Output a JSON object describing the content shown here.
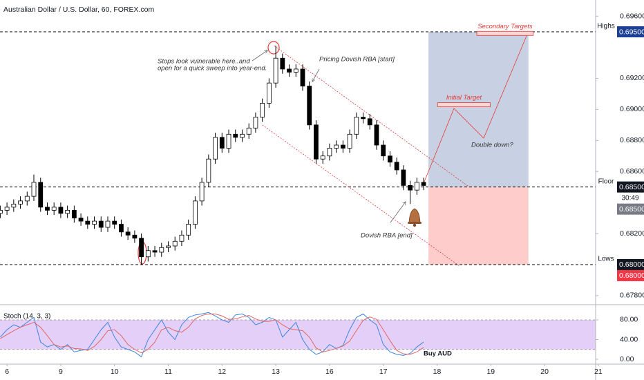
{
  "chart_data": [
    {
      "type": "candlestick",
      "title": "Australian Dollar / U.S. Dollar, 60, FOREX.com",
      "x": [
        -0.125,
        0,
        0.125,
        0.25,
        0.375,
        0.5,
        0.625,
        0.75,
        0.875,
        1,
        1.125,
        1.25,
        1.375,
        1.5,
        1.625,
        1.75,
        1.875,
        2,
        2.125,
        2.25,
        2.375,
        2.5,
        2.625,
        2.75,
        2.875,
        3,
        3.125,
        3.25,
        3.375,
        3.5,
        3.625,
        3.75,
        3.875,
        4,
        4.125,
        4.25,
        4.375,
        4.5,
        4.625,
        4.75,
        4.875,
        5,
        5.125,
        5.25,
        5.375,
        5.5,
        5.625,
        5.75,
        5.875,
        6,
        6.125,
        6.25,
        6.375,
        6.5,
        6.625,
        6.75,
        6.875,
        7,
        7.125,
        7.25,
        7.375,
        7.5,
        7.625,
        7.75
      ],
      "open": [
        0.6833,
        0.6835,
        0.6837,
        0.6839,
        0.6841,
        0.6844,
        0.6853,
        0.6837,
        0.6835,
        0.6837,
        0.6833,
        0.6835,
        0.683,
        0.6828,
        0.6826,
        0.6828,
        0.6824,
        0.6828,
        0.6826,
        0.6821,
        0.6819,
        0.6817,
        0.6805,
        0.6809,
        0.6808,
        0.6811,
        0.6812,
        0.6815,
        0.6819,
        0.6826,
        0.6841,
        0.6853,
        0.6868,
        0.6882,
        0.6875,
        0.6884,
        0.6882,
        0.6884,
        0.6888,
        0.6895,
        0.6904,
        0.6917,
        0.6933,
        0.6926,
        0.6924,
        0.6926,
        0.6915,
        0.689,
        0.6868,
        0.687,
        0.6875,
        0.6877,
        0.6875,
        0.6884,
        0.6895,
        0.6894,
        0.689,
        0.6877,
        0.687,
        0.6866,
        0.6861,
        0.6851,
        0.6848,
        0.6853
      ],
      "high": [
        0.6838,
        0.684,
        0.6842,
        0.6844,
        0.6847,
        0.6858,
        0.6856,
        0.684,
        0.684,
        0.684,
        0.6838,
        0.6838,
        0.6833,
        0.6831,
        0.6831,
        0.6831,
        0.6831,
        0.6831,
        0.6829,
        0.6824,
        0.6822,
        0.682,
        0.6812,
        0.6812,
        0.6814,
        0.6815,
        0.6818,
        0.6822,
        0.6829,
        0.6844,
        0.6856,
        0.6871,
        0.6885,
        0.6885,
        0.6887,
        0.6887,
        0.6887,
        0.6891,
        0.6898,
        0.6907,
        0.692,
        0.6941,
        0.6936,
        0.6929,
        0.6929,
        0.6929,
        0.6918,
        0.6893,
        0.6873,
        0.6878,
        0.688,
        0.688,
        0.6887,
        0.6898,
        0.6898,
        0.6897,
        0.6893,
        0.688,
        0.6873,
        0.6869,
        0.6864,
        0.6854,
        0.6856,
        0.6856
      ],
      "low": [
        0.683,
        0.6832,
        0.6834,
        0.6836,
        0.6838,
        0.6841,
        0.6834,
        0.6832,
        0.6832,
        0.683,
        0.683,
        0.6827,
        0.6825,
        0.6823,
        0.6823,
        0.6821,
        0.6821,
        0.6823,
        0.6818,
        0.6816,
        0.6814,
        0.68,
        0.6802,
        0.6805,
        0.6805,
        0.6808,
        0.6809,
        0.6812,
        0.6816,
        0.6823,
        0.6838,
        0.685,
        0.6865,
        0.6872,
        0.6872,
        0.6879,
        0.6879,
        0.6881,
        0.6885,
        0.6892,
        0.6901,
        0.6914,
        0.6923,
        0.6921,
        0.6921,
        0.6912,
        0.6887,
        0.6865,
        0.6865,
        0.6867,
        0.6872,
        0.6872,
        0.6872,
        0.6881,
        0.6891,
        0.6887,
        0.6874,
        0.6867,
        0.6863,
        0.6858,
        0.6848,
        0.6839,
        0.6845,
        0.6848
      ],
      "close": [
        0.6835,
        0.6837,
        0.6839,
        0.6841,
        0.6844,
        0.6853,
        0.6837,
        0.6835,
        0.6837,
        0.6833,
        0.6835,
        0.683,
        0.6828,
        0.6826,
        0.6828,
        0.6824,
        0.6828,
        0.6826,
        0.6821,
        0.6819,
        0.6817,
        0.6805,
        0.6809,
        0.6808,
        0.6811,
        0.6812,
        0.6815,
        0.6819,
        0.6826,
        0.6841,
        0.6853,
        0.6868,
        0.6882,
        0.6875,
        0.6884,
        0.6882,
        0.6884,
        0.6888,
        0.6895,
        0.6904,
        0.6917,
        0.6933,
        0.6926,
        0.6924,
        0.6926,
        0.6915,
        0.689,
        0.6868,
        0.687,
        0.6875,
        0.6877,
        0.6875,
        0.6884,
        0.6895,
        0.6894,
        0.689,
        0.6877,
        0.687,
        0.6866,
        0.6861,
        0.6851,
        0.6848,
        0.6853,
        0.6851
      ],
      "colors": {
        "up": "#ffffff",
        "down": "#000000",
        "wick": "#000000"
      },
      "xlim": [
        -0.13,
        10.95
      ],
      "xticks": [
        {
          "value": 0,
          "label": "6"
        },
        {
          "value": 1,
          "label": "9"
        },
        {
          "value": 2,
          "label": "10"
        },
        {
          "value": 3,
          "label": "11"
        },
        {
          "value": 4,
          "label": "12"
        },
        {
          "value": 5,
          "label": "13"
        },
        {
          "value": 6,
          "label": "16"
        },
        {
          "value": 7,
          "label": "17"
        },
        {
          "value": 8,
          "label": "18"
        },
        {
          "value": 9,
          "label": "19"
        },
        {
          "value": 10,
          "label": "20"
        },
        {
          "value": 11,
          "label": "21"
        }
      ],
      "ylim": [
        0.67746,
        0.69705
      ],
      "yticks": [
        {
          "value": 0.696,
          "label": "0.69600"
        },
        {
          "value": 0.692,
          "label": "0.69200"
        },
        {
          "value": 0.69,
          "label": "0.69000"
        },
        {
          "value": 0.688,
          "label": "0.68800"
        },
        {
          "value": 0.686,
          "label": "0.68600"
        },
        {
          "value": 0.682,
          "label": "0.68200"
        },
        {
          "value": 0.678,
          "label": "0.67800"
        }
      ],
      "grid": false,
      "levels": [
        {
          "name": "Highs",
          "value": 0.695
        },
        {
          "name": "Floor",
          "value": 0.685
        },
        {
          "name": "Lows",
          "value": 0.68
        }
      ],
      "price_tags": [
        {
          "label": "0.69500",
          "value": 0.695,
          "color": "#1c3f94"
        },
        {
          "label": "0.68500",
          "value": 0.685,
          "color": "#131722"
        },
        {
          "label": "0.68500",
          "value": 0.685,
          "color": "#787b86"
        },
        {
          "label": "0.68000",
          "value": 0.68,
          "color": "#131722"
        },
        {
          "label": "0.68000",
          "value": 0.68,
          "color": "#f23645"
        }
      ],
      "countdown": "30:49",
      "position": {
        "x": [
          7.84,
          9.7
        ],
        "target": 0.695,
        "entry": 0.685,
        "stop": 0.68,
        "profit_color": "#c8d1e3",
        "loss_color": "#ffcccc"
      },
      "trendlines": [
        {
          "x": [
            4.97,
            8.6
          ],
          "y": [
            0.6941,
            0.685
          ],
          "color": "#e53935"
        },
        {
          "x": [
            4.75,
            8.42
          ],
          "y": [
            0.689,
            0.6799
          ],
          "color": "#e53935"
        }
      ],
      "targets": [
        {
          "name": "Initial Target",
          "value": 0.6903,
          "x": [
            8.01,
            8.99
          ]
        },
        {
          "name": "Secondary Targets",
          "value": 0.6949,
          "x": [
            8.74,
            9.79
          ]
        }
      ],
      "annotations": {
        "stops": [
          "Stops look vulnerable here..and",
          "open for a quick sweep into year-end."
        ],
        "pricing_start": "Pricing Dovish RBA [start]",
        "dovish_end": "Dovish RBA [end]",
        "double_down": "Double down?"
      }
    },
    {
      "type": "line",
      "title": "Stoch (14, 3, 3)",
      "note": "Buy AUD",
      "x": [
        -0.125,
        0,
        0.125,
        0.25,
        0.375,
        0.5,
        0.625,
        0.75,
        0.875,
        1,
        1.125,
        1.25,
        1.375,
        1.5,
        1.625,
        1.75,
        1.875,
        2,
        2.125,
        2.25,
        2.375,
        2.5,
        2.625,
        2.75,
        2.875,
        3,
        3.125,
        3.25,
        3.375,
        3.5,
        3.625,
        3.75,
        3.875,
        4,
        4.125,
        4.25,
        4.375,
        4.5,
        4.625,
        4.75,
        4.875,
        5,
        5.125,
        5.25,
        5.375,
        5.5,
        5.625,
        5.75,
        5.875,
        6,
        6.125,
        6.25,
        6.375,
        6.5,
        6.625,
        6.75,
        6.875,
        7,
        7.125,
        7.25,
        7.375,
        7.5,
        7.625,
        7.75
      ],
      "series": [
        {
          "color": "#3d85e0",
          "values": [
            45,
            60,
            70,
            65,
            75,
            85,
            35,
            25,
            30,
            20,
            30,
            15,
            18,
            20,
            40,
            60,
            75,
            45,
            25,
            20,
            15,
            5,
            40,
            60,
            80,
            55,
            40,
            70,
            85,
            90,
            92,
            95,
            88,
            80,
            75,
            90,
            92,
            85,
            70,
            75,
            85,
            80,
            45,
            60,
            75,
            40,
            20,
            10,
            15,
            30,
            22,
            28,
            60,
            85,
            92,
            80,
            70,
            30,
            15,
            10,
            8,
            12,
            25,
            35
          ]
        },
        {
          "color": "#e06666",
          "values": [
            42,
            50,
            58,
            65,
            70,
            75,
            65,
            48,
            30,
            25,
            27,
            22,
            21,
            18,
            26,
            40,
            58,
            60,
            48,
            30,
            20,
            13,
            20,
            35,
            60,
            65,
            58,
            55,
            65,
            82,
            89,
            92,
            92,
            88,
            81,
            82,
            86,
            89,
            82,
            77,
            77,
            80,
            70,
            62,
            60,
            58,
            45,
            23,
            15,
            18,
            22,
            27,
            37,
            58,
            79,
            86,
            81,
            60,
            38,
            18,
            11,
            10,
            15,
            24
          ]
        }
      ],
      "ylim": [
        -9.8,
        108
      ],
      "yticks": [
        {
          "value": 80,
          "label": "80.00"
        },
        {
          "value": 40,
          "label": "40.00"
        },
        {
          "value": 0,
          "label": "0.00"
        }
      ],
      "band": [
        20,
        80
      ],
      "band_color": "#e3cff7"
    }
  ]
}
